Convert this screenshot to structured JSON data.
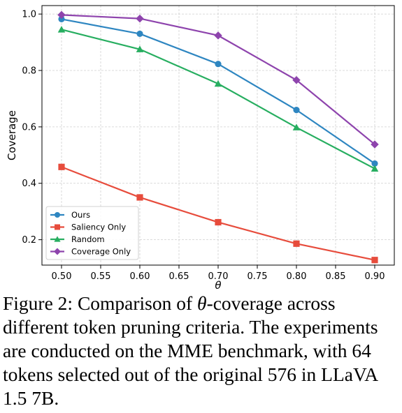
{
  "chart_data": {
    "type": "line",
    "x": [
      0.5,
      0.6,
      0.7,
      0.8,
      0.9
    ],
    "xlabel": "θ",
    "ylabel": "Coverage",
    "xlim": [
      0.475,
      0.925
    ],
    "ylim": [
      0.11,
      1.03
    ],
    "xticks": [
      "0.50",
      "0.55",
      "0.60",
      "0.65",
      "0.70",
      "0.75",
      "0.80",
      "0.85",
      "0.90"
    ],
    "xtick_values": [
      0.5,
      0.55,
      0.6,
      0.65,
      0.7,
      0.75,
      0.8,
      0.85,
      0.9
    ],
    "yticks": [
      "0.2",
      "0.4",
      "0.6",
      "0.8",
      "1.0"
    ],
    "ytick_values": [
      0.2,
      0.4,
      0.6,
      0.8,
      1.0
    ],
    "grid": true,
    "legend_position": "lower-left",
    "series": [
      {
        "name": "Ours",
        "marker": "circle",
        "color": "#2e86c1",
        "values": [
          0.982,
          0.93,
          0.823,
          0.66,
          0.47
        ]
      },
      {
        "name": "Saliency Only",
        "marker": "square",
        "color": "#e74c3c",
        "values": [
          0.458,
          0.35,
          0.262,
          0.186,
          0.128
        ]
      },
      {
        "name": "Random",
        "marker": "triangle",
        "color": "#27ae60",
        "values": [
          0.945,
          0.875,
          0.753,
          0.598,
          0.452
        ]
      },
      {
        "name": "Coverage Only",
        "marker": "diamond",
        "color": "#8e44ad",
        "values": [
          0.997,
          0.984,
          0.924,
          0.766,
          0.538
        ]
      }
    ]
  },
  "caption": {
    "prefix": "Figure 2:  Comparison of ",
    "theta": "θ",
    "suffix": "-coverage across different token pruning criteria. The experiments are conducted on the MME benchmark, with 64 tokens selected out of the original 576 in LLaVA 1.5 7B."
  }
}
